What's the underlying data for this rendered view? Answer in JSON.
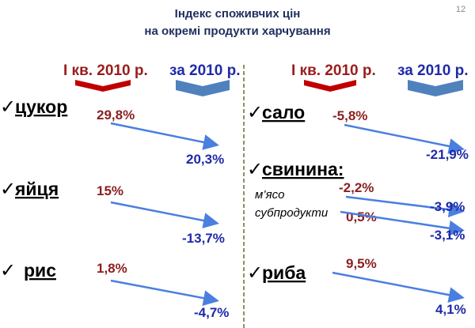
{
  "page_number": "12",
  "title": [
    "Індекс споживчих цін",
    "на окремі продукти харчування"
  ],
  "headers": {
    "left": [
      "І кв. 2010 р.",
      "за 2010 р."
    ],
    "right": [
      "І кв. 2010 р.",
      "за 2010 р."
    ]
  },
  "left": [
    {
      "name": "цукор",
      "q1": "29,8%",
      "year": "20,3%"
    },
    {
      "name": "яйця",
      "q1": "15%",
      "year": "-13,7%"
    },
    {
      "name": "рис",
      "q1": "1,8%",
      "year": "-4,7%"
    }
  ],
  "right": [
    {
      "name": "сало",
      "q1": "-5,8%",
      "year": "-21,9%"
    },
    {
      "name": "свинина:",
      "rows": [
        {
          "label": "м’ясо",
          "q1": "-2,2%",
          "year": "-3,9%"
        },
        {
          "label": "субпродукти",
          "q1": "0,5%",
          "year": "-3,1%"
        }
      ]
    },
    {
      "name": "риба",
      "q1": "9,5%",
      "year": "4,1%"
    }
  ]
}
